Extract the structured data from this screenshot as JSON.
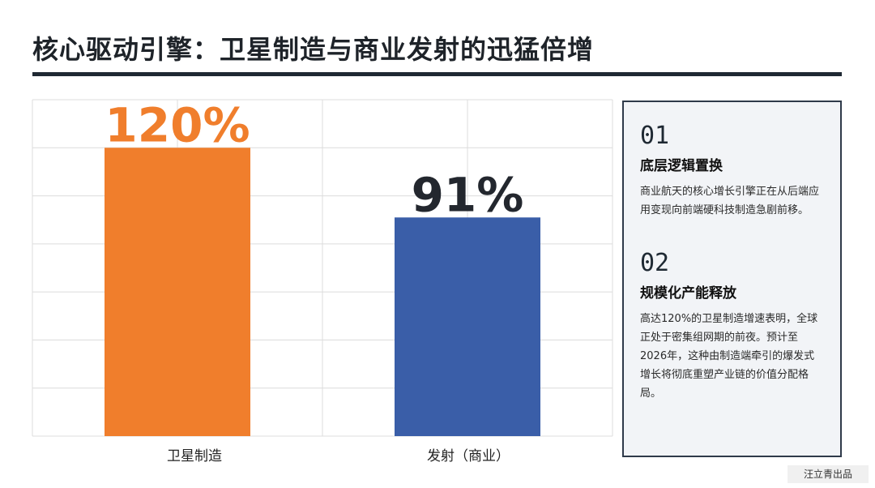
{
  "title": "核心驱动引擎：卫星制造与商业发射的迅猛倍增",
  "chart_data": {
    "type": "bar",
    "categories": [
      "卫星制造",
      "发射（商业）"
    ],
    "values": [
      120,
      91
    ],
    "value_labels": [
      "120%",
      "91%"
    ],
    "ylim": [
      0,
      140
    ],
    "grid": true,
    "colors": [
      "#f07e2c",
      "#3a5ea8"
    ],
    "value_label_colors": [
      "#f07e2c",
      "#23272e"
    ]
  },
  "panel": {
    "sections": [
      {
        "number": "01",
        "heading": "底层逻辑置换",
        "body": "商业航天的核心增长引擎正在从后端应用变现向前端硬科技制造急剧前移。"
      },
      {
        "number": "02",
        "heading": "规模化产能释放",
        "body": "高达120%的卫星制造增速表明，全球正处于密集组网期的前夜。预计至2026年，这种由制造端牵引的爆发式增长将彻底重塑产业链的价值分配格局。"
      }
    ]
  },
  "footer": "汪立青出品"
}
